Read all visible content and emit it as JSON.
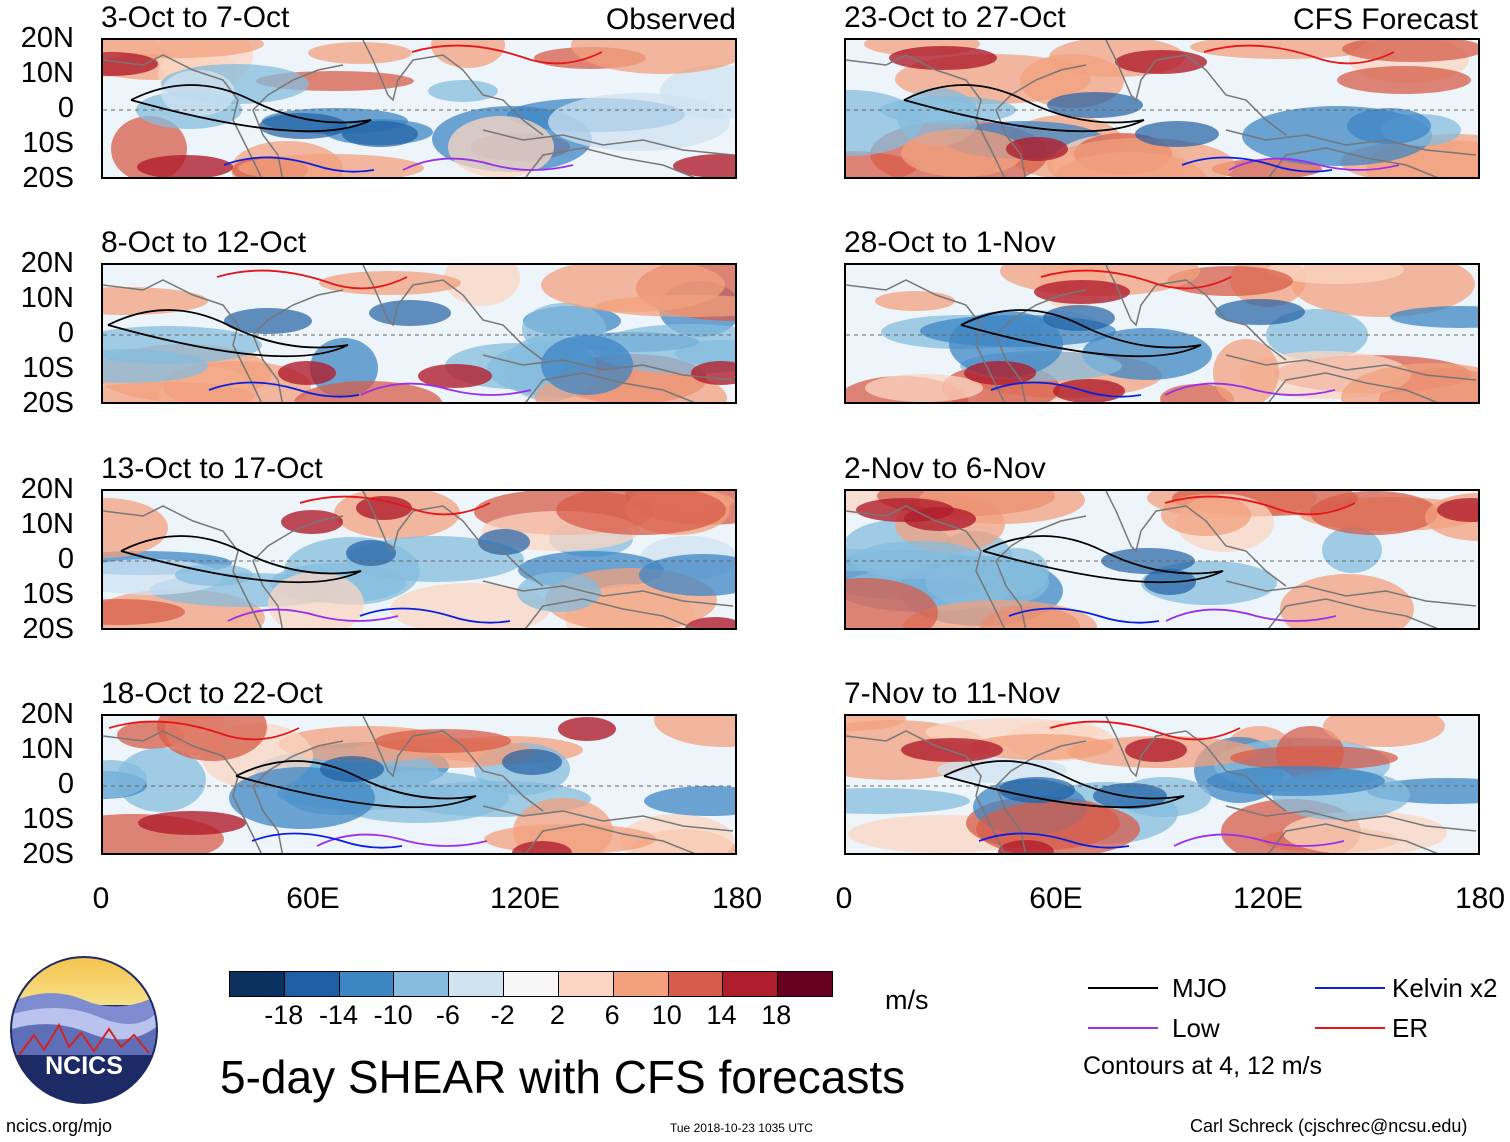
{
  "observed_label": "Observed",
  "forecast_label": "CFS Forecast",
  "panels": [
    {
      "title": "3-Oct to 7-Oct",
      "col": 0,
      "row": 0
    },
    {
      "title": "8-Oct to 12-Oct",
      "col": 0,
      "row": 1
    },
    {
      "title": "13-Oct to 17-Oct",
      "col": 0,
      "row": 2
    },
    {
      "title": "18-Oct to 22-Oct",
      "col": 0,
      "row": 3
    },
    {
      "title": "23-Oct to 27-Oct",
      "col": 1,
      "row": 0
    },
    {
      "title": "28-Oct to 1-Nov",
      "col": 1,
      "row": 1
    },
    {
      "title": "2-Nov to 6-Nov",
      "col": 1,
      "row": 2
    },
    {
      "title": "7-Nov to 11-Nov",
      "col": 1,
      "row": 3
    }
  ],
  "y_labels": [
    "20N",
    "10N",
    "0",
    "10S",
    "20S"
  ],
  "x_labels": [
    "0",
    "60E",
    "120E",
    "180"
  ],
  "colorbar": {
    "ticks": [
      "-18",
      "-14",
      "-10",
      "-6",
      "-2",
      "2",
      "6",
      "10",
      "14",
      "18"
    ],
    "colors": [
      "#0a3160",
      "#1f5fa3",
      "#3d86c4",
      "#86bcde",
      "#cfe3f1",
      "#f7f7f7",
      "#fbd6c2",
      "#f2a07e",
      "#d75c4a",
      "#b01e2d",
      "#67001f"
    ],
    "units": "m/s"
  },
  "legend": {
    "mjo": "MJO",
    "kelvin": "Kelvin x2",
    "low": "Low",
    "er": "ER",
    "contours_note": "Contours at 4, 12 m/s",
    "colors": {
      "mjo": "#000000",
      "kelvin": "#0b1fe0",
      "low": "#9b30e8",
      "er": "#e3161a"
    }
  },
  "title": "5-day SHEAR with CFS forecasts",
  "footer": {
    "site": "ncics.org/mjo",
    "timestamp": "Tue 2018-10-23 1035 UTC",
    "credit": "Carl Schreck (cjschrec@ncsu.edu)"
  },
  "logo_text": "NCICS"
}
